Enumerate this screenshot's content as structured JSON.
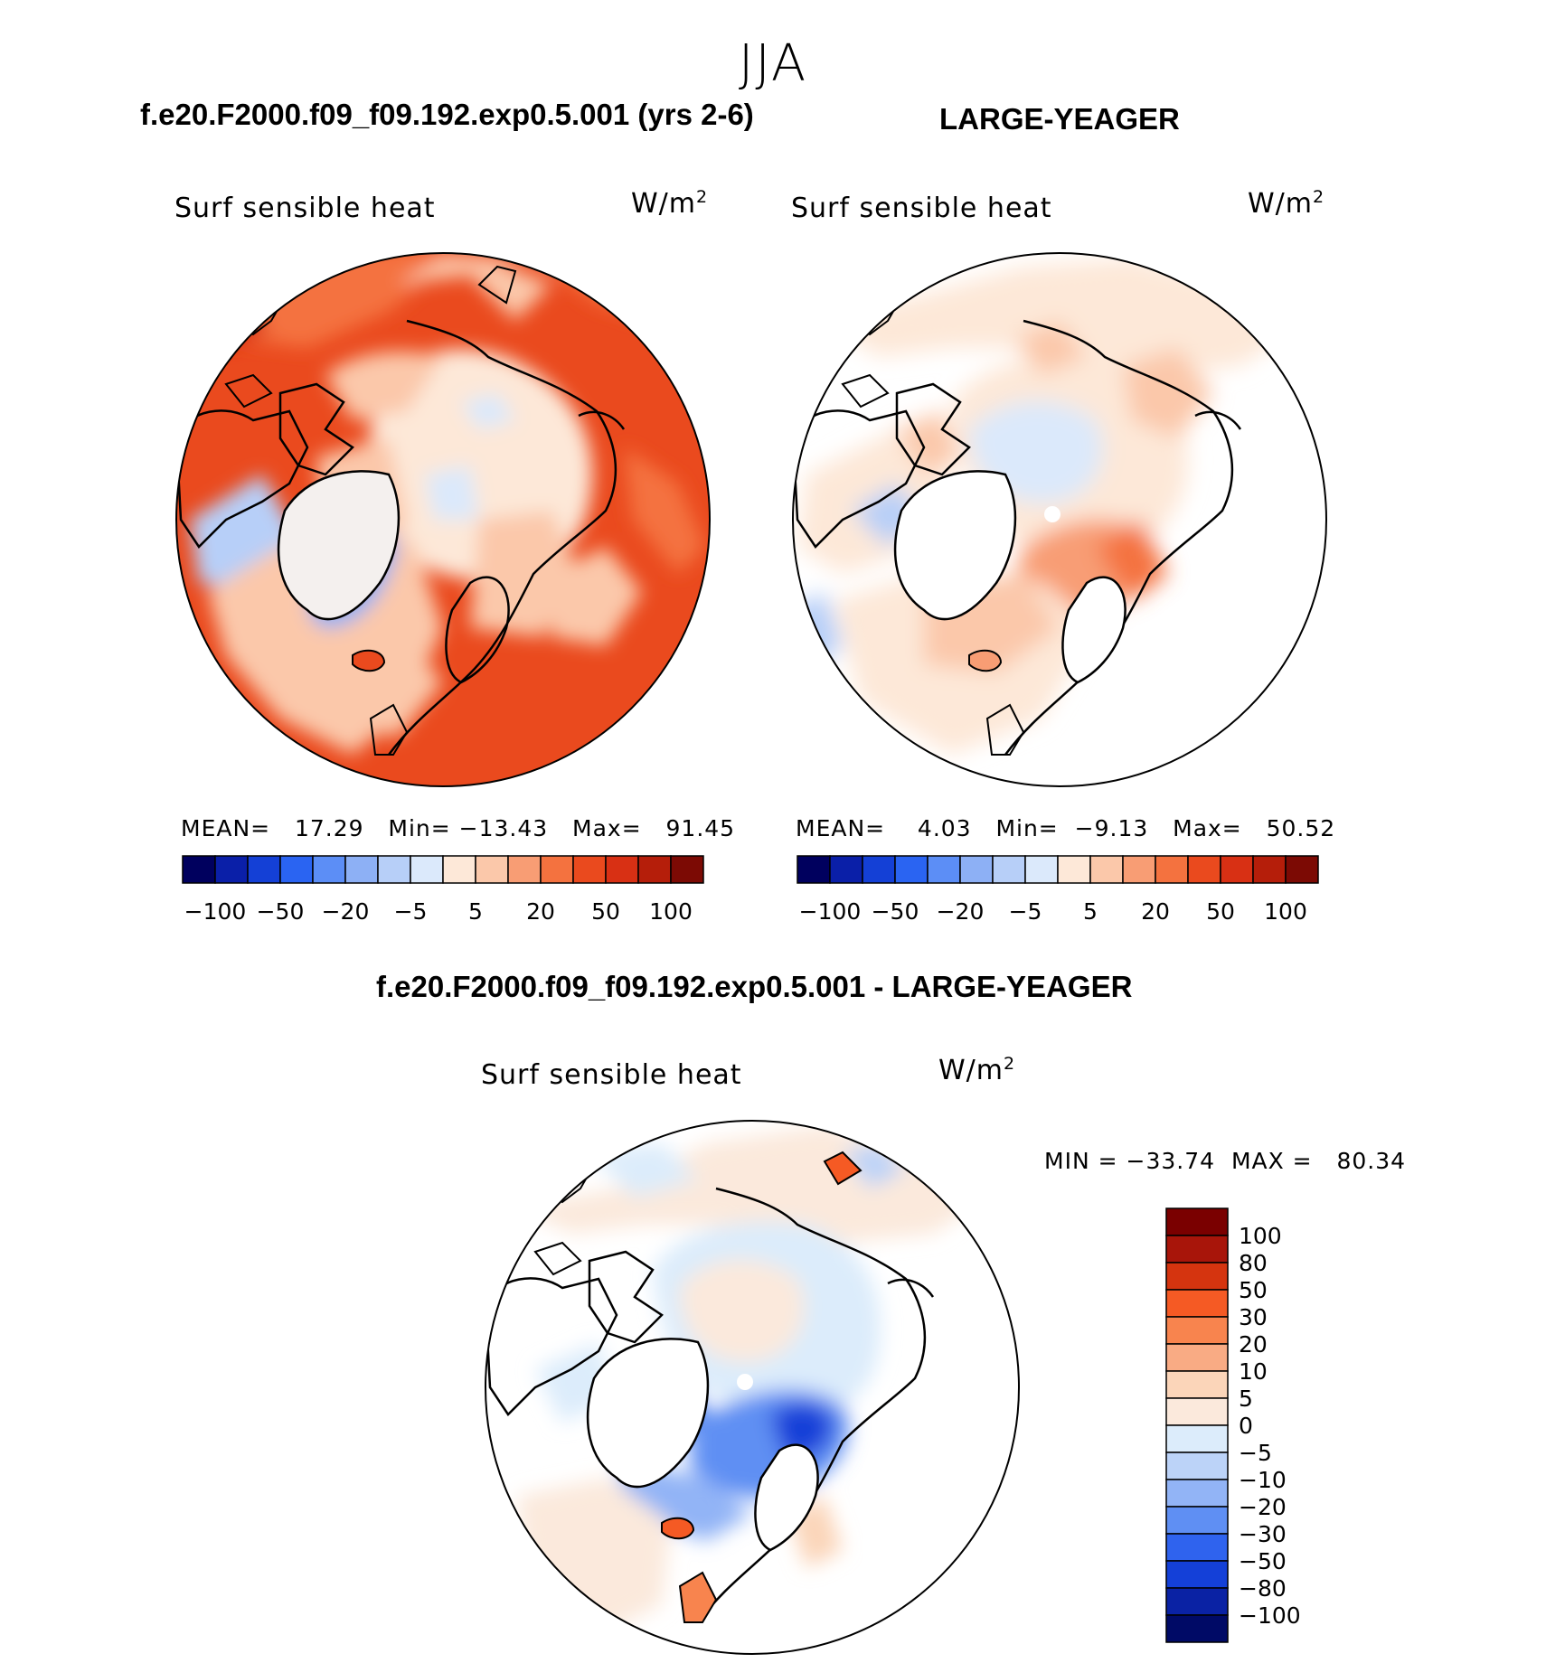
{
  "season": "JJA",
  "top_left": {
    "case": "f.e20.F2000.f09_f09.192.exp0.5.001 (yrs 2-6)",
    "field": "Surf sensible heat",
    "units_base": "W/m",
    "units_exp": "2",
    "mean_label": "MEAN=",
    "mean": "17.29",
    "min_label": "Min=",
    "min": "−13.43",
    "max_label": "Max=",
    "max": "91.45"
  },
  "top_right": {
    "case": "LARGE-YEAGER",
    "field": "Surf sensible heat",
    "units_base": "W/m",
    "units_exp": "2",
    "mean_label": "MEAN=",
    "mean": "4.03",
    "min_label": "Min=",
    "min": "−9.13",
    "max_label": "Max=",
    "max": "50.52"
  },
  "top_colorbar": {
    "colors": [
      "#00005e",
      "#0a1fa8",
      "#1440d6",
      "#2a64f2",
      "#5c8ef6",
      "#8db0f5",
      "#b7cff8",
      "#dbe9fb",
      "#fde8d8",
      "#fbc8aa",
      "#f89d74",
      "#f4723f",
      "#ea4a1e",
      "#d83014",
      "#b51e0a",
      "#7c0a04"
    ],
    "labels": [
      "−100",
      "−50",
      "−20",
      "−5",
      "5",
      "20",
      "50",
      "100"
    ]
  },
  "diff": {
    "case": "f.e20.F2000.f09_f09.192.exp0.5.001 - LARGE-YEAGER",
    "field": "Surf sensible heat",
    "units_base": "W/m",
    "units_exp": "2",
    "min_label": "MIN =",
    "min": "−33.74",
    "max_label": "MAX =",
    "max": "80.34"
  },
  "diff_colorbar": {
    "colors": [
      "#7a0000",
      "#a8150a",
      "#d5340f",
      "#f55a24",
      "#f8844e",
      "#f9ab84",
      "#fbd5b9",
      "#fbe9dc",
      "#dcecfb",
      "#bcd3f8",
      "#92b4f6",
      "#5f8ff3",
      "#2f63ee",
      "#1440d8",
      "#0a22a4",
      "#000a66"
    ],
    "labels": [
      "100",
      "80",
      "50",
      "30",
      "20",
      "10",
      "5",
      "0",
      "−5",
      "−10",
      "−20",
      "−30",
      "−50",
      "−80",
      "−100"
    ]
  }
}
